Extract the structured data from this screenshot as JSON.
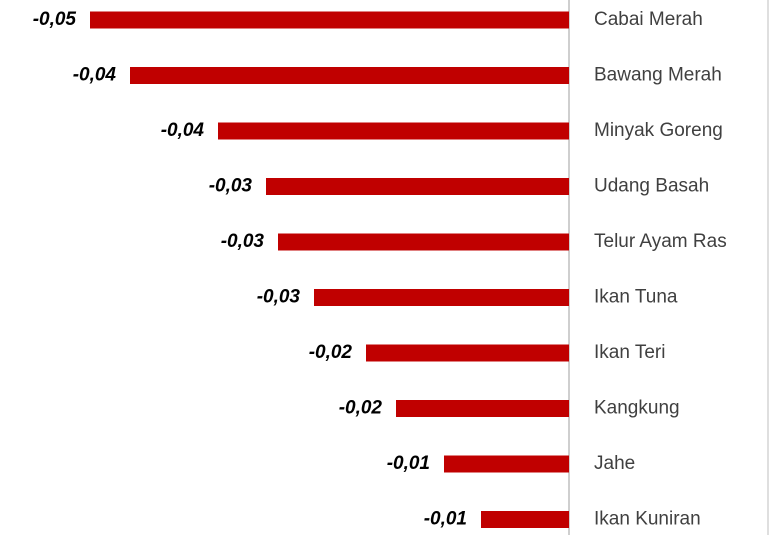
{
  "chart_data": {
    "type": "bar",
    "orientation": "horizontal",
    "categories": [
      "Cabai Merah",
      "Bawang Merah",
      "Minyak Goreng",
      "Udang Basah",
      "Telur Ayam Ras",
      "Ikan Tuna",
      "Ikan Teri",
      "Kangkung",
      "Jahe",
      "Ikan Kuniran"
    ],
    "values": [
      -0.0479,
      -0.0439,
      -0.0351,
      -0.0303,
      -0.0291,
      -0.0255,
      -0.0203,
      -0.0173,
      -0.0125,
      -0.0088
    ],
    "value_labels": [
      "-0,05",
      "-0,04",
      "-0,04",
      "-0,03",
      "-0,03",
      "-0,03",
      "-0,02",
      "-0,02",
      "-0,01",
      "-0,01"
    ],
    "color": "#c00000",
    "xlim": [
      -0.0569,
      0
    ]
  }
}
